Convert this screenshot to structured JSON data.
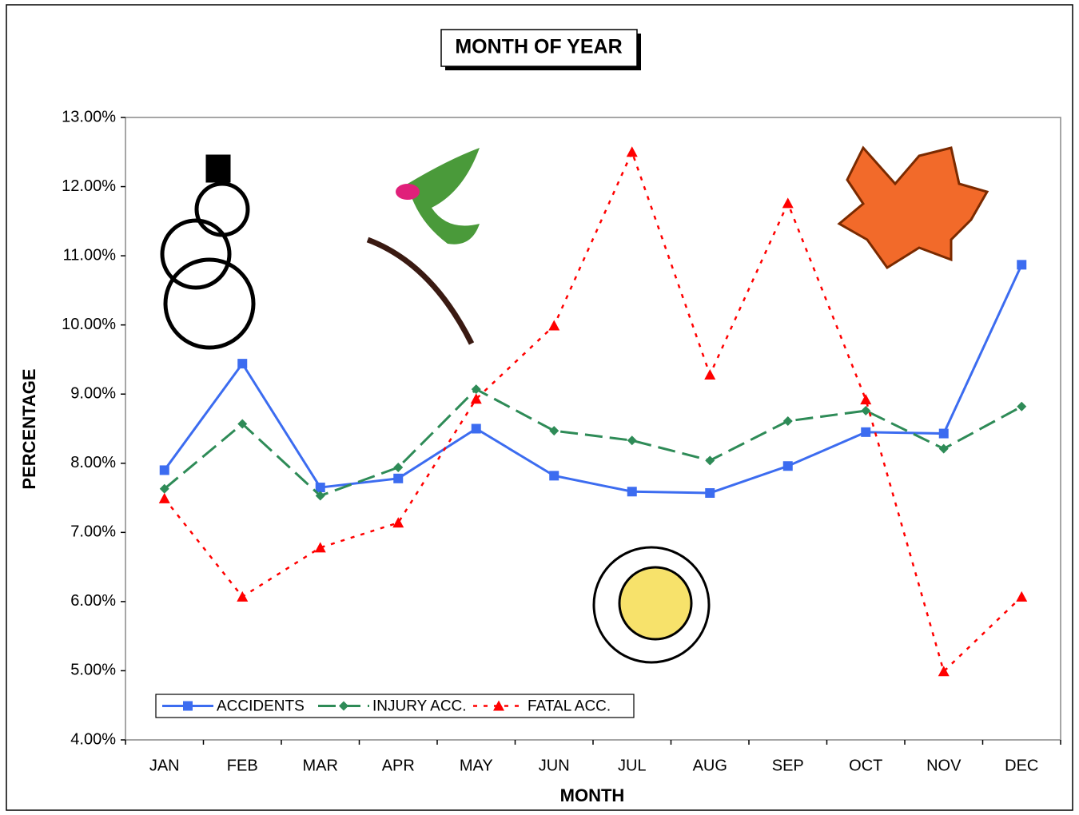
{
  "chart_data": {
    "type": "line",
    "title": "MONTH OF YEAR",
    "x_label": "MONTH",
    "y_label": "PERCENTAGE",
    "categories": [
      "JAN",
      "FEB",
      "MAR",
      "APR",
      "MAY",
      "JUN",
      "JUL",
      "AUG",
      "SEP",
      "OCT",
      "NOV",
      "DEC"
    ],
    "series": [
      {
        "name": "ACCIDENTS",
        "color": "#3c6cf0",
        "values": [
          7.9,
          9.44,
          7.65,
          7.78,
          8.5,
          7.82,
          7.59,
          7.57,
          7.96,
          8.45,
          8.43,
          10.87
        ]
      },
      {
        "name": "INJURY ACC.",
        "color": "#2e8b57",
        "values": [
          7.63,
          8.57,
          7.53,
          7.94,
          9.07,
          8.47,
          8.33,
          8.04,
          8.61,
          8.76,
          8.21,
          8.82
        ]
      },
      {
        "name": "FATAL ACC.",
        "color": "#ff0000",
        "values": [
          7.49,
          6.07,
          6.78,
          7.14,
          8.93,
          9.99,
          12.5,
          9.28,
          11.76,
          8.92,
          4.99,
          6.07
        ]
      }
    ],
    "ylim": [
      4,
      13
    ],
    "yticks": [
      {
        "value": 4,
        "label": "4.00%"
      },
      {
        "value": 5,
        "label": "5.00%"
      },
      {
        "value": 6,
        "label": "6.00%"
      },
      {
        "value": 7,
        "label": "7.00%"
      },
      {
        "value": 8,
        "label": "8.00%"
      },
      {
        "value": 9,
        "label": "9.00%"
      },
      {
        "value": 10,
        "label": "10.00%"
      },
      {
        "value": 11,
        "label": "11.00%"
      },
      {
        "value": 12,
        "label": "12.00%"
      },
      {
        "value": 13,
        "label": "13.00%"
      }
    ],
    "grid": false,
    "legend": "bottom-left"
  }
}
